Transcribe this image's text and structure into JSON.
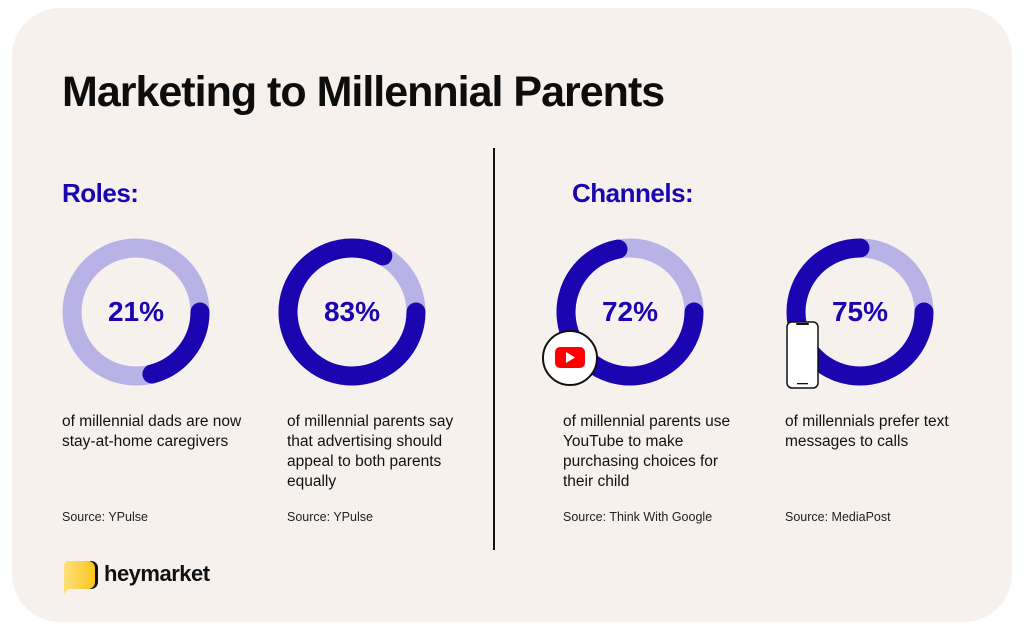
{
  "title": "Marketing to Millennial Parents",
  "sections": {
    "roles": "Roles:",
    "channels": "Channels:"
  },
  "colors": {
    "accent": "#1a05b0",
    "track": "#b9b2e6",
    "background": "#f6f1ed"
  },
  "chart_data": [
    {
      "type": "pie",
      "variant": "donut",
      "value": 21,
      "label": "21%",
      "description": "of millennial dads are now stay-at-home caregivers",
      "source": "Source: YPulse"
    },
    {
      "type": "pie",
      "variant": "donut",
      "value": 83,
      "label": "83%",
      "description": "of millennial parents say that advertising should appeal to both parents equally",
      "source": "Source: YPulse"
    },
    {
      "type": "pie",
      "variant": "donut",
      "value": 72,
      "label": "72%",
      "description": "of millennial parents use YouTube to make purchasing choices for their child",
      "source": "Source: Think With Google",
      "icon": "youtube-icon"
    },
    {
      "type": "pie",
      "variant": "donut",
      "value": 75,
      "label": "75%",
      "description": "of millennials prefer text messages to calls",
      "source": "Source: MediaPost",
      "icon": "smartphone-icon"
    }
  ],
  "brand": {
    "name": "heymarket"
  }
}
